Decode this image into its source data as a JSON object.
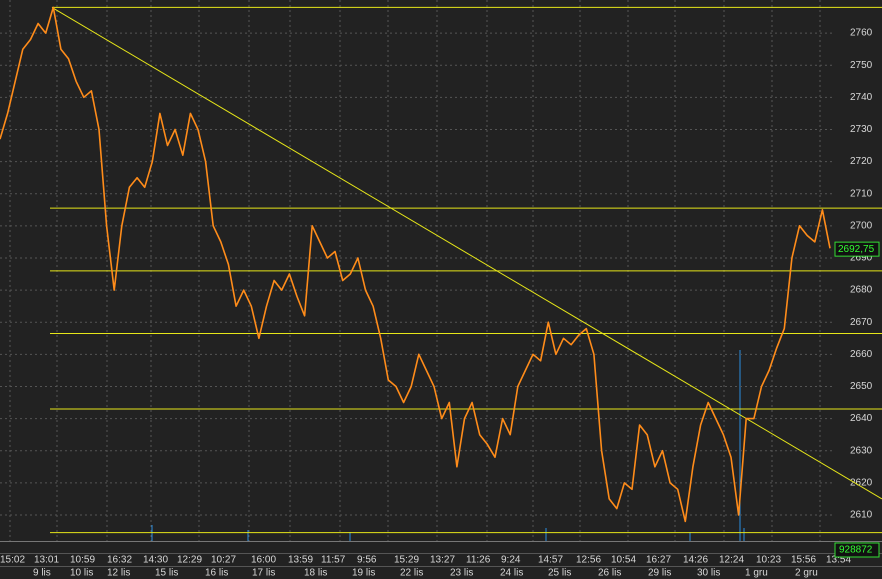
{
  "chart_data": {
    "type": "line",
    "ylim": [
      2601.9,
      2770.3
    ],
    "yticks": [
      2610,
      2620,
      2630,
      2640,
      2650,
      2660,
      2670,
      2680,
      2690,
      2700,
      2710,
      2720,
      2730,
      2740,
      2750,
      2760
    ],
    "grid": true,
    "color": "#ff8c1a",
    "values": [
      2727,
      2735,
      2745,
      2755,
      2758,
      2763,
      2760,
      2768,
      2755,
      2752,
      2745,
      2740,
      2742,
      2730,
      2700,
      2680,
      2700,
      2712,
      2715,
      2712,
      2720,
      2735,
      2725,
      2730,
      2722,
      2735,
      2730,
      2720,
      2700,
      2695,
      2688,
      2675,
      2680,
      2675,
      2665,
      2675,
      2683,
      2680,
      2685,
      2678,
      2672,
      2700,
      2695,
      2690,
      2692,
      2683,
      2685,
      2690,
      2680,
      2675,
      2665,
      2652,
      2650,
      2645,
      2650,
      2660,
      2655,
      2650,
      2640,
      2645,
      2625,
      2640,
      2645,
      2635,
      2632,
      2628,
      2640,
      2635,
      2650,
      2655,
      2660,
      2658,
      2670,
      2660,
      2665,
      2663,
      2666,
      2668,
      2660,
      2630,
      2615,
      2612,
      2620,
      2618,
      2638,
      2635,
      2625,
      2630,
      2620,
      2618,
      2608,
      2625,
      2638,
      2645,
      2640,
      2635,
      2628,
      2610,
      2640,
      2640,
      2650,
      2655,
      2662,
      2668,
      2690,
      2700,
      2697,
      2695,
      2705,
      2693
    ],
    "levels": [
      2768,
      2705.5,
      2686,
      2666.5,
      2643,
      2604.5
    ],
    "level_color": "#e6e619",
    "trendline": [
      2768,
      2615
    ],
    "last_price": {
      "value": 2692.75,
      "label": "2692,75"
    },
    "last_volume": 928872,
    "time_labels": [
      "15:02",
      "13:01",
      "10:59",
      "16:32",
      "14:30",
      "12:29",
      "10:27",
      "16:00",
      "13:59",
      "11:57",
      "9:56",
      "15:29",
      "13:27",
      "11:26",
      "9:24",
      "14:57",
      "12:56",
      "10:54",
      "16:27",
      "14:26",
      "12:24",
      "10:23",
      "15:56",
      "13:54"
    ],
    "date_labels": [
      "9 lis",
      "10 lis",
      "12 lis",
      "15 lis",
      "16 lis",
      "17 lis",
      "18 lis",
      "19 lis",
      "22 lis",
      "23 lis",
      "24 lis",
      "25 lis",
      "26 lis",
      "29 lis",
      "30 lis",
      "1 gru",
      "2 gru"
    ]
  }
}
